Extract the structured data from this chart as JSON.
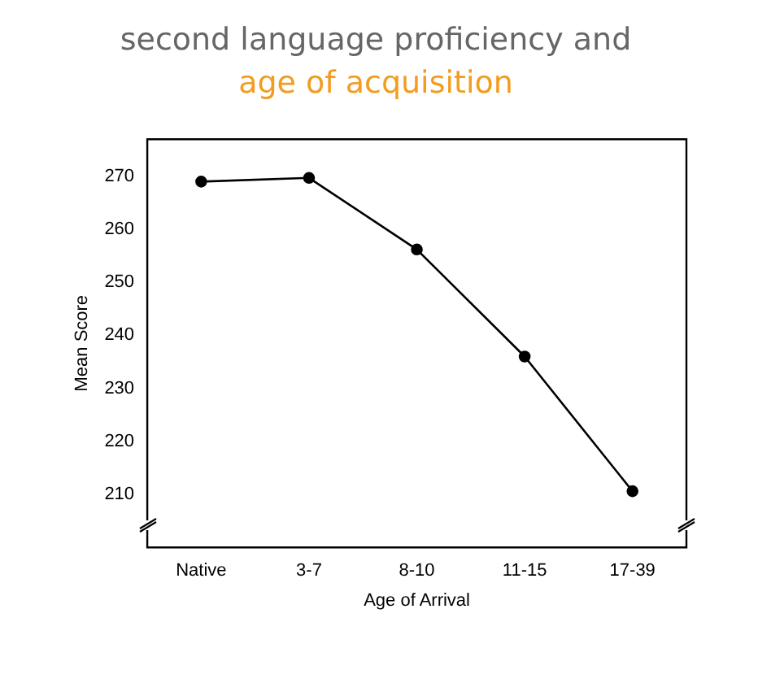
{
  "chart_data": {
    "type": "line",
    "title": "second language proficiency and",
    "subtitle": "age of acquisition",
    "xlabel": "Age of Arrival",
    "ylabel": "Mean Score",
    "categories": [
      "Native",
      "3-7",
      "8-10",
      "11-15",
      "17-39"
    ],
    "series": [
      {
        "color": "#000000",
        "values": [
          269,
          269.7,
          256.2,
          236,
          210.6
        ]
      }
    ],
    "ylim": [
      200,
      277
    ],
    "yticks": [
      210,
      220,
      230,
      240,
      250,
      260,
      270
    ],
    "grid": false,
    "legend": false,
    "marker": "circle",
    "line_style": "solid"
  }
}
